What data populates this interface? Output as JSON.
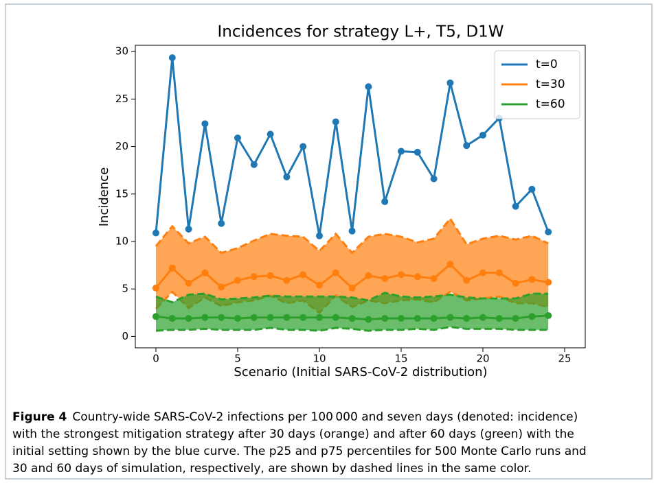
{
  "chart_data": {
    "type": "line",
    "title": "Incidences for strategy L+, T5, D1W",
    "xlabel": "Scenario (Initial SARS-CoV-2 distribution)",
    "ylabel": "Incidence",
    "x": [
      0,
      1,
      2,
      3,
      4,
      5,
      6,
      7,
      8,
      9,
      10,
      11,
      12,
      13,
      14,
      15,
      16,
      17,
      18,
      19,
      20,
      21,
      22,
      23,
      24
    ],
    "series": [
      {
        "name": "t=0",
        "color": "#1f77b4",
        "values": [
          10.9,
          29.35,
          11.3,
          22.4,
          11.9,
          20.9,
          18.1,
          21.3,
          16.8,
          20.0,
          10.6,
          22.6,
          11.1,
          26.3,
          14.2,
          19.5,
          19.4,
          16.6,
          26.7,
          20.1,
          21.2,
          23.0,
          13.7,
          15.5,
          11.0
        ]
      },
      {
        "name": "t=30",
        "color": "#ff7f0e",
        "values": [
          5.1,
          7.2,
          5.6,
          6.7,
          5.2,
          5.9,
          6.3,
          6.4,
          5.9,
          6.5,
          5.4,
          6.7,
          5.1,
          6.4,
          6.1,
          6.5,
          6.3,
          6.1,
          7.6,
          5.9,
          6.7,
          6.7,
          5.6,
          6.0,
          5.7
        ],
        "p25": [
          2.9,
          4.7,
          3.0,
          4.1,
          3.2,
          3.6,
          3.8,
          4.3,
          3.5,
          3.8,
          2.5,
          4.3,
          3.1,
          3.8,
          3.5,
          3.8,
          3.9,
          3.6,
          4.7,
          3.8,
          4.0,
          4.2,
          3.5,
          3.5,
          3.1
        ],
        "p75": [
          9.5,
          11.6,
          9.8,
          10.5,
          8.8,
          9.3,
          10.1,
          10.8,
          10.6,
          10.5,
          9.0,
          10.8,
          8.8,
          10.5,
          10.8,
          10.5,
          9.9,
          10.3,
          12.4,
          9.7,
          10.3,
          10.6,
          10.2,
          10.6,
          9.8
        ]
      },
      {
        "name": "t=60",
        "color": "#2ca02c",
        "values": [
          2.1,
          1.9,
          1.9,
          2.0,
          2.0,
          1.9,
          2.0,
          2.0,
          2.0,
          2.0,
          2.0,
          2.0,
          1.9,
          1.8,
          1.9,
          1.9,
          1.9,
          1.9,
          2.0,
          1.9,
          2.0,
          1.9,
          1.9,
          2.1,
          2.2
        ],
        "p25": [
          0.6,
          0.7,
          0.7,
          0.8,
          0.7,
          0.7,
          0.7,
          0.9,
          0.7,
          0.7,
          0.6,
          0.9,
          0.8,
          0.6,
          0.7,
          0.7,
          0.8,
          0.7,
          1.0,
          0.8,
          0.8,
          0.8,
          0.7,
          0.7,
          0.7
        ],
        "p75": [
          4.2,
          3.6,
          4.4,
          4.5,
          3.9,
          4.0,
          4.1,
          4.3,
          4.2,
          4.2,
          4.2,
          4.2,
          4.1,
          3.8,
          4.6,
          4.2,
          4.1,
          4.2,
          4.4,
          4.1,
          4.0,
          4.0,
          4.0,
          4.5,
          4.5
        ]
      }
    ],
    "xlim": [
      -1.26,
      26.26
    ],
    "ylim": [
      -1.2,
      30.66
    ],
    "xticks": [
      0,
      5,
      10,
      15,
      20,
      25
    ],
    "yticks": [
      0,
      5,
      10,
      15,
      20,
      25,
      30
    ],
    "legend": "upper right"
  },
  "caption": {
    "label": "Figure 4",
    "lines": [
      "Country-wide SARS-CoV-2 infections per 100 000 and seven days (denoted: incidence)",
      "with the strongest mitigation strategy after 30 days (orange) and after 60 days (green) with the",
      "initial setting shown by the blue curve. The p25 and p75 percentiles for 500 Monte Carlo runs and",
      "30 and 60 days of simulation, respectively, are shown by dashed lines in the same color."
    ]
  }
}
